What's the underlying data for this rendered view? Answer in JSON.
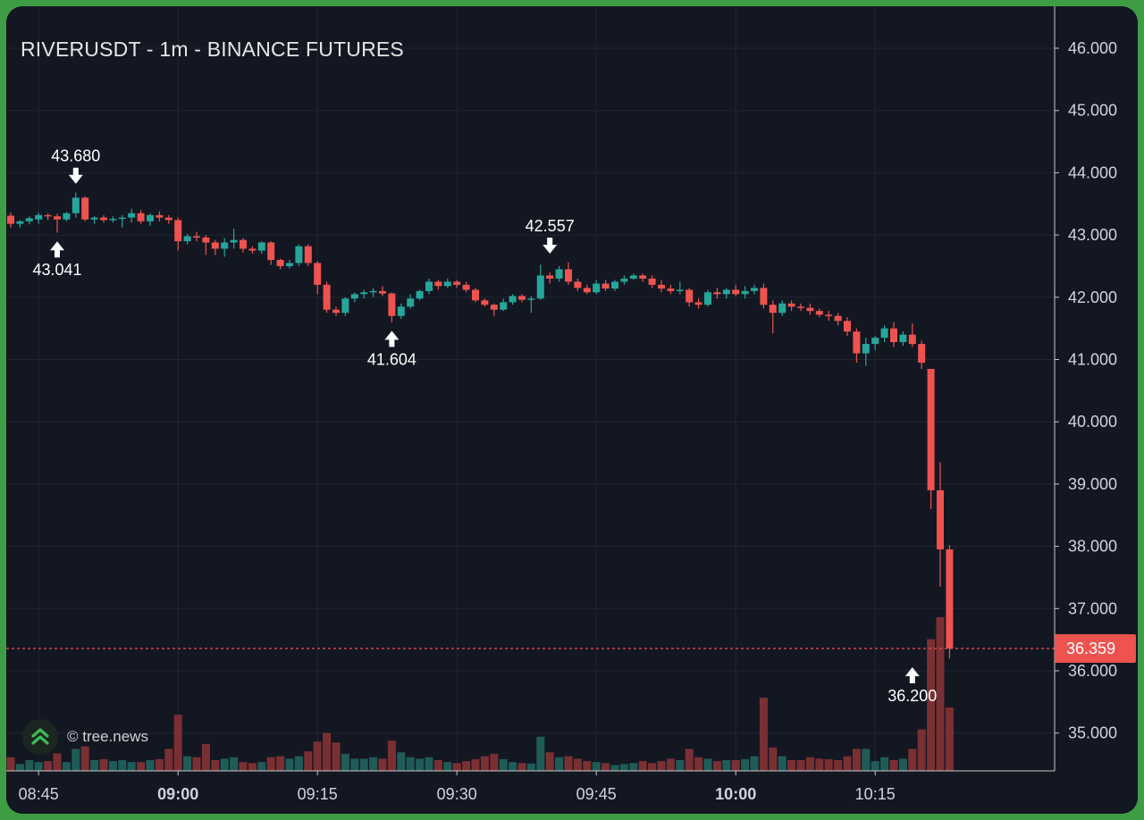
{
  "chart": {
    "title": "RIVERUSDT - 1m - BINANCE FUTURES",
    "watermark": "© tree.news",
    "last_price_label": "36.359"
  },
  "colors": {
    "up": "#26a69a",
    "down": "#ef5350",
    "background": "#131722",
    "grid": "#222632",
    "axis_text": "#d1d4dc",
    "frame": "#3f9e45"
  },
  "chart_data": {
    "type": "candlestick",
    "symbol": "RIVERUSDT",
    "interval": "1m",
    "exchange": "BINANCE FUTURES",
    "y_ticks": [
      "35.000",
      "36.000",
      "37.000",
      "38.000",
      "39.000",
      "40.000",
      "41.000",
      "42.000",
      "43.000",
      "44.000",
      "45.000",
      "46.000"
    ],
    "x_ticks": [
      {
        "label": "08:45",
        "bold": false,
        "i": 3
      },
      {
        "label": "09:00",
        "bold": true,
        "i": 18
      },
      {
        "label": "09:15",
        "bold": false,
        "i": 33
      },
      {
        "label": "09:30",
        "bold": false,
        "i": 48
      },
      {
        "label": "09:45",
        "bold": false,
        "i": 63
      },
      {
        "label": "10:00",
        "bold": true,
        "i": 78
      },
      {
        "label": "10:15",
        "bold": false,
        "i": 93
      }
    ],
    "ylim": [
      34.45,
      46.5
    ],
    "x_start": "08:42",
    "interval_minutes": 1,
    "last_price": 36.359,
    "annotations": [
      {
        "label": "43.680",
        "i": 7,
        "price": 43.68,
        "kind": "high"
      },
      {
        "label": "43.041",
        "i": 5,
        "price": 43.041,
        "kind": "low"
      },
      {
        "label": "41.604",
        "i": 41,
        "price": 41.604,
        "kind": "low"
      },
      {
        "label": "42.557",
        "i": 58,
        "price": 42.557,
        "kind": "high"
      },
      {
        "label": "36.200",
        "i": 97,
        "price": 36.2,
        "kind": "low"
      }
    ],
    "candles": [
      [
        43.31,
        43.36,
        43.12,
        43.18,
        28
      ],
      [
        43.18,
        43.24,
        43.12,
        43.22,
        14
      ],
      [
        43.22,
        43.3,
        43.17,
        43.27,
        22
      ],
      [
        43.25,
        43.36,
        43.18,
        43.32,
        18
      ],
      [
        43.32,
        43.35,
        43.24,
        43.3,
        20
      ],
      [
        43.3,
        43.34,
        43.04,
        43.25,
        36
      ],
      [
        43.25,
        43.37,
        43.22,
        43.35,
        18
      ],
      [
        43.35,
        43.68,
        43.28,
        43.6,
        45
      ],
      [
        43.6,
        43.62,
        43.22,
        43.25,
        50
      ],
      [
        43.25,
        43.3,
        43.18,
        43.28,
        22
      ],
      [
        43.28,
        43.32,
        43.2,
        43.24,
        24
      ],
      [
        43.24,
        43.3,
        43.2,
        43.26,
        20
      ],
      [
        43.26,
        43.32,
        43.12,
        43.28,
        22
      ],
      [
        43.28,
        43.42,
        43.2,
        43.35,
        18
      ],
      [
        43.35,
        43.4,
        43.18,
        43.22,
        18
      ],
      [
        43.22,
        43.35,
        43.15,
        43.32,
        22
      ],
      [
        43.32,
        43.38,
        43.22,
        43.28,
        24
      ],
      [
        43.28,
        43.32,
        43.18,
        43.24,
        45
      ],
      [
        43.24,
        43.28,
        42.75,
        42.9,
        115
      ],
      [
        42.9,
        43.02,
        42.85,
        42.98,
        30
      ],
      [
        42.98,
        43.05,
        42.9,
        42.96,
        28
      ],
      [
        42.96,
        43.0,
        42.68,
        42.88,
        55
      ],
      [
        42.88,
        42.92,
        42.68,
        42.78,
        22
      ],
      [
        42.78,
        42.95,
        42.65,
        42.88,
        25
      ],
      [
        42.88,
        43.1,
        42.78,
        42.92,
        28
      ],
      [
        42.92,
        42.95,
        42.72,
        42.78,
        18
      ],
      [
        42.78,
        42.82,
        42.7,
        42.75,
        16
      ],
      [
        42.75,
        42.9,
        42.7,
        42.88,
        18
      ],
      [
        42.88,
        42.9,
        42.52,
        42.6,
        28
      ],
      [
        42.6,
        42.62,
        42.45,
        42.5,
        30
      ],
      [
        42.5,
        42.6,
        42.46,
        42.55,
        25
      ],
      [
        42.55,
        42.85,
        42.5,
        42.82,
        30
      ],
      [
        42.82,
        42.85,
        42.5,
        42.55,
        40
      ],
      [
        42.55,
        42.58,
        42.05,
        42.2,
        60
      ],
      [
        42.2,
        42.25,
        41.75,
        41.8,
        78
      ],
      [
        41.8,
        41.85,
        41.7,
        41.75,
        58
      ],
      [
        41.75,
        42.0,
        41.7,
        41.98,
        35
      ],
      [
        41.98,
        42.08,
        41.92,
        42.05,
        25
      ],
      [
        42.05,
        42.12,
        41.98,
        42.08,
        25
      ],
      [
        42.08,
        42.15,
        42.0,
        42.1,
        28
      ],
      [
        42.1,
        42.18,
        42.02,
        42.06,
        25
      ],
      [
        42.06,
        42.08,
        41.6,
        41.7,
        62
      ],
      [
        41.7,
        41.9,
        41.65,
        41.85,
        38
      ],
      [
        41.85,
        42.05,
        41.82,
        41.98,
        28
      ],
      [
        41.98,
        42.12,
        41.95,
        42.1,
        25
      ],
      [
        42.1,
        42.3,
        42.05,
        42.25,
        28
      ],
      [
        42.25,
        42.28,
        42.12,
        42.18,
        22
      ],
      [
        42.18,
        42.3,
        42.15,
        42.25,
        18
      ],
      [
        42.25,
        42.28,
        42.15,
        42.2,
        16
      ],
      [
        42.2,
        42.25,
        42.08,
        42.12,
        20
      ],
      [
        42.12,
        42.15,
        41.92,
        41.95,
        24
      ],
      [
        41.95,
        41.98,
        41.85,
        41.88,
        30
      ],
      [
        41.88,
        41.9,
        41.7,
        41.8,
        35
      ],
      [
        41.8,
        41.98,
        41.78,
        41.92,
        24
      ],
      [
        41.92,
        42.05,
        41.88,
        42.02,
        18
      ],
      [
        42.02,
        42.05,
        41.92,
        41.96,
        16
      ],
      [
        41.96,
        42.02,
        41.75,
        41.98,
        15
      ],
      [
        41.98,
        42.52,
        41.96,
        42.35,
        70
      ],
      [
        42.35,
        42.4,
        42.22,
        42.3,
        38
      ],
      [
        42.3,
        42.5,
        42.25,
        42.45,
        28
      ],
      [
        42.45,
        42.56,
        42.2,
        42.25,
        30
      ],
      [
        42.25,
        42.3,
        42.1,
        42.15,
        25
      ],
      [
        42.15,
        42.2,
        42.05,
        42.08,
        20
      ],
      [
        42.08,
        42.28,
        42.05,
        42.22,
        18
      ],
      [
        42.22,
        42.28,
        42.1,
        42.14,
        16
      ],
      [
        42.14,
        42.28,
        42.1,
        42.25,
        12
      ],
      [
        42.25,
        42.35,
        42.2,
        42.3,
        14
      ],
      [
        42.3,
        42.38,
        42.28,
        42.35,
        16
      ],
      [
        42.35,
        42.38,
        42.25,
        42.3,
        20
      ],
      [
        42.3,
        42.35,
        42.15,
        42.2,
        16
      ],
      [
        42.2,
        42.28,
        42.08,
        42.14,
        20
      ],
      [
        42.14,
        42.2,
        42.05,
        42.1,
        25
      ],
      [
        42.1,
        42.25,
        42.05,
        42.12,
        22
      ],
      [
        42.12,
        42.15,
        41.85,
        41.92,
        45
      ],
      [
        41.92,
        41.98,
        41.82,
        41.88,
        28
      ],
      [
        41.88,
        42.12,
        41.85,
        42.08,
        25
      ],
      [
        42.08,
        42.15,
        41.98,
        42.05,
        20
      ],
      [
        42.05,
        42.15,
        41.98,
        42.12,
        22
      ],
      [
        42.12,
        42.2,
        42.02,
        42.05,
        22
      ],
      [
        42.05,
        42.18,
        41.98,
        42.1,
        24
      ],
      [
        42.1,
        42.2,
        42.05,
        42.15,
        30
      ],
      [
        42.15,
        42.22,
        41.82,
        41.88,
        150
      ],
      [
        41.88,
        41.95,
        41.42,
        41.75,
        48
      ],
      [
        41.75,
        41.95,
        41.7,
        41.9,
        30
      ],
      [
        41.9,
        41.95,
        41.78,
        41.85,
        22
      ],
      [
        41.85,
        41.9,
        41.78,
        41.83,
        22
      ],
      [
        41.83,
        41.9,
        41.72,
        41.78,
        28
      ],
      [
        41.78,
        41.82,
        41.68,
        41.72,
        25
      ],
      [
        41.72,
        41.78,
        41.62,
        41.7,
        24
      ],
      [
        41.7,
        41.75,
        41.55,
        41.62,
        22
      ],
      [
        41.62,
        41.68,
        41.38,
        41.45,
        30
      ],
      [
        41.45,
        41.5,
        40.95,
        41.1,
        45
      ],
      [
        41.1,
        41.35,
        40.9,
        41.25,
        45
      ],
      [
        41.25,
        41.38,
        41.15,
        41.35,
        20
      ],
      [
        41.35,
        41.55,
        41.28,
        41.5,
        28
      ],
      [
        41.5,
        41.6,
        41.2,
        41.28,
        22
      ],
      [
        41.28,
        41.45,
        41.22,
        41.4,
        25
      ],
      [
        41.4,
        41.58,
        41.2,
        41.25,
        45
      ],
      [
        41.25,
        41.3,
        40.85,
        40.95,
        85
      ],
      [
        40.85,
        40.85,
        38.6,
        38.9,
        270
      ],
      [
        38.9,
        39.35,
        37.35,
        37.95,
        315
      ],
      [
        37.95,
        38.02,
        36.2,
        36.36,
        130
      ]
    ],
    "candle_slot_width": 10.4,
    "candle_start_x": 5,
    "volume_max": 315
  }
}
